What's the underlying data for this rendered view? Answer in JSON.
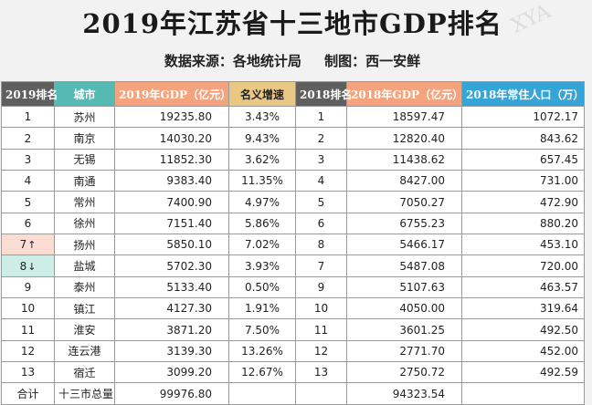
{
  "title": "2019年江苏省十三地市GDP排名",
  "subtitle": {
    "source": "数据来源：各地统计局",
    "author": "制图：西一安鲜"
  },
  "watermark": "XYA",
  "headers": [
    "2019排名",
    "城市",
    "2019年GDP（亿元）",
    "名义增速",
    "2018排名",
    "2018年GDP（亿元）",
    "2018年常住人口（万）"
  ],
  "rows": [
    {
      "rank": "1",
      "city": "苏州",
      "gdp2019": "19235.80",
      "growth": "3.43%",
      "rank2018": "1",
      "gdp2018": "18597.47",
      "pop": "1072.17",
      "change": ""
    },
    {
      "rank": "2",
      "city": "南京",
      "gdp2019": "14030.20",
      "growth": "9.43%",
      "rank2018": "2",
      "gdp2018": "12820.40",
      "pop": "843.62",
      "change": ""
    },
    {
      "rank": "3",
      "city": "无锡",
      "gdp2019": "11852.30",
      "growth": "3.62%",
      "rank2018": "3",
      "gdp2018": "11438.62",
      "pop": "657.45",
      "change": ""
    },
    {
      "rank": "4",
      "city": "南通",
      "gdp2019": "9383.40",
      "growth": "11.35%",
      "rank2018": "4",
      "gdp2018": "8427.00",
      "pop": "731.00",
      "change": ""
    },
    {
      "rank": "5",
      "city": "常州",
      "gdp2019": "7400.90",
      "growth": "4.97%",
      "rank2018": "5",
      "gdp2018": "7050.27",
      "pop": "472.90",
      "change": ""
    },
    {
      "rank": "6",
      "city": "徐州",
      "gdp2019": "7151.40",
      "growth": "5.86%",
      "rank2018": "6",
      "gdp2018": "6755.23",
      "pop": "880.20",
      "change": ""
    },
    {
      "rank": "7",
      "city": "扬州",
      "gdp2019": "5850.10",
      "growth": "7.02%",
      "rank2018": "8",
      "gdp2018": "5466.17",
      "pop": "453.10",
      "change": "↑"
    },
    {
      "rank": "8",
      "city": "盐城",
      "gdp2019": "5702.30",
      "growth": "3.93%",
      "rank2018": "7",
      "gdp2018": "5487.08",
      "pop": "720.00",
      "change": "↓"
    },
    {
      "rank": "9",
      "city": "泰州",
      "gdp2019": "5133.40",
      "growth": "0.50%",
      "rank2018": "9",
      "gdp2018": "5107.63",
      "pop": "463.57",
      "change": ""
    },
    {
      "rank": "10",
      "city": "镇江",
      "gdp2019": "4127.30",
      "growth": "1.91%",
      "rank2018": "10",
      "gdp2018": "4050.00",
      "pop": "319.64",
      "change": ""
    },
    {
      "rank": "11",
      "city": "淮安",
      "gdp2019": "3871.20",
      "growth": "7.50%",
      "rank2018": "11",
      "gdp2018": "3601.25",
      "pop": "492.50",
      "change": ""
    },
    {
      "rank": "12",
      "city": "连云港",
      "gdp2019": "3139.30",
      "growth": "13.26%",
      "rank2018": "12",
      "gdp2018": "2771.70",
      "pop": "452.00",
      "change": ""
    },
    {
      "rank": "13",
      "city": "宿迁",
      "gdp2019": "3099.20",
      "growth": "12.67%",
      "rank2018": "13",
      "gdp2018": "2750.72",
      "pop": "492.59",
      "change": ""
    }
  ],
  "total": {
    "label": "合计",
    "city": "十三市总量",
    "gdp2019": "99976.80",
    "gdp2018": "94323.54"
  },
  "colors": {
    "header_rank": "#5f5f5f",
    "header_city": "#55b9b4",
    "header_gdp2019": "#f4a37d",
    "header_growth": "#e9c886",
    "header_gdp2018": "#f4a37d",
    "header_pop": "#35a4d6",
    "rank_up": "#fbdcd2",
    "rank_down": "#cdeee7"
  }
}
